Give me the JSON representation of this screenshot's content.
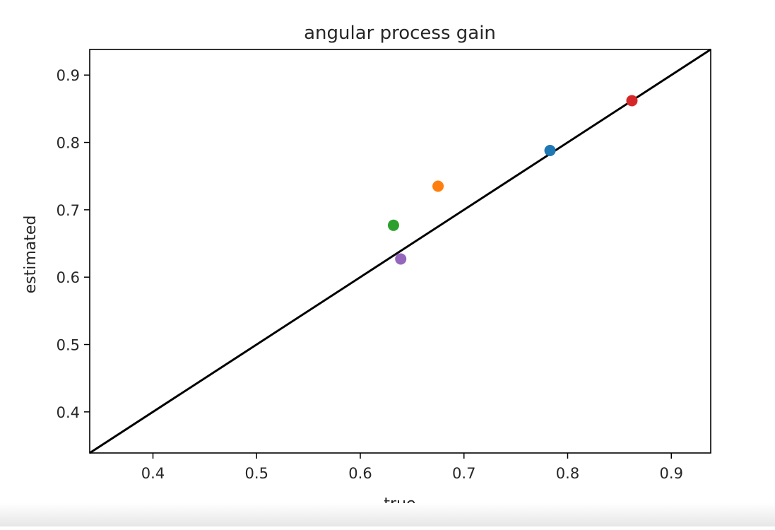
{
  "chart_data": {
    "type": "scatter",
    "title": "angular process gain",
    "xlabel": "true",
    "ylabel": "estimated",
    "xlim": [
      0.339,
      0.938
    ],
    "ylim": [
      0.339,
      0.938
    ],
    "xticks": [
      0.4,
      0.5,
      0.6,
      0.7,
      0.8,
      0.9
    ],
    "yticks": [
      0.4,
      0.5,
      0.6,
      0.7,
      0.8,
      0.9
    ],
    "xtick_labels": [
      "0.4",
      "0.5",
      "0.6",
      "0.7",
      "0.8",
      "0.9"
    ],
    "ytick_labels": [
      "0.4",
      "0.5",
      "0.6",
      "0.7",
      "0.8",
      "0.9"
    ],
    "grid": false,
    "points": [
      {
        "x": 0.783,
        "y": 0.788,
        "color": "#1f77b4"
      },
      {
        "x": 0.675,
        "y": 0.735,
        "color": "#ff7f0e"
      },
      {
        "x": 0.632,
        "y": 0.677,
        "color": "#2ca02c"
      },
      {
        "x": 0.862,
        "y": 0.862,
        "color": "#d62728"
      },
      {
        "x": 0.639,
        "y": 0.627,
        "color": "#9467bd"
      }
    ],
    "reference_line": {
      "x": [
        0.339,
        0.938
      ],
      "y": [
        0.339,
        0.938
      ],
      "color": "#000000"
    }
  }
}
